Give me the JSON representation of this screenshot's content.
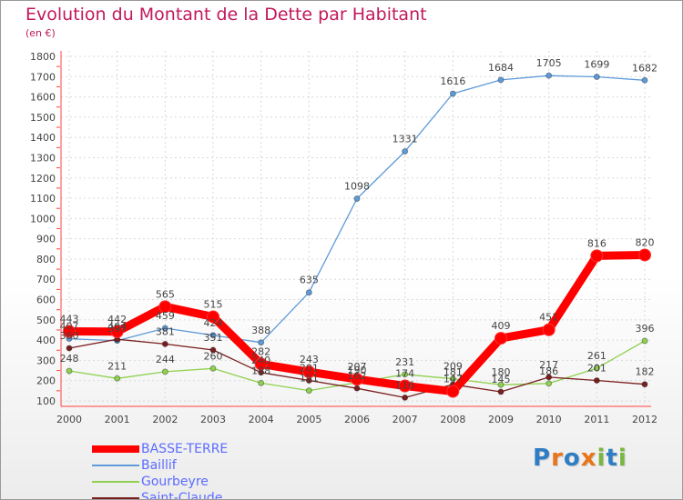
{
  "header": {
    "title": "Evolution du Montant de la Dette par Habitant",
    "subtitle": "(en €)"
  },
  "brand": {
    "logo_text": "Proxiti",
    "letters": [
      {
        "char": "P",
        "color": "#2f7ec4"
      },
      {
        "char": "r",
        "color": "#e8751a"
      },
      {
        "char": "o",
        "color": "#2f7ec4"
      },
      {
        "char": "x",
        "color": "#e8751a"
      },
      {
        "char": "i",
        "color": "#7ab642"
      },
      {
        "char": "t",
        "color": "#2f7ec4"
      },
      {
        "char": "i",
        "color": "#7ab642"
      }
    ]
  },
  "chart_data": {
    "type": "line",
    "title": "Evolution du Montant de la Dette par Habitant",
    "subtitle": "(en €)",
    "x": [
      "2000",
      "2001",
      "2002",
      "2003",
      "2004",
      "2005",
      "2006",
      "2007",
      "2008",
      "2009",
      "2010",
      "2011",
      "2012"
    ],
    "ylim": [
      100,
      1800
    ],
    "yticks": [
      100,
      200,
      300,
      400,
      500,
      600,
      700,
      800,
      900,
      1000,
      1100,
      1200,
      1300,
      1400,
      1500,
      1600,
      1700,
      1800
    ],
    "grid": true,
    "legend_position": "bottom-left",
    "series": [
      {
        "name": "BASSE-TERRE",
        "color": "#ff0000",
        "emphasis": true,
        "values": [
          443,
          442,
          565,
          515,
          282,
          243,
          207,
          174,
          147,
          409,
          451,
          816,
          820
        ],
        "labels": [
          "443",
          "442",
          "565",
          "515",
          "282",
          "243",
          "207",
          "174",
          "147",
          "409",
          "451",
          "816",
          "820"
        ]
      },
      {
        "name": "Baillif",
        "color": "#5e9bd8",
        "values": [
          407,
          397,
          459,
          424,
          388,
          635,
          1098,
          1331,
          1616,
          1684,
          1705,
          1699,
          1682
        ],
        "labels": [
          "407",
          "397",
          "459",
          "424",
          "388",
          "635",
          "1098",
          "1331",
          "1616",
          "1684",
          "1705",
          "1699",
          "1682"
        ]
      },
      {
        "name": "Gourbeyre",
        "color": "#8fd14f",
        "values": [
          248,
          211,
          244,
          260,
          188,
          151,
          190,
          231,
          209,
          180,
          186,
          261,
          396
        ],
        "labels": [
          "248",
          "211",
          "244",
          "260",
          "188",
          "151",
          "190",
          "231",
          "209",
          "180",
          "186",
          "261",
          "396"
        ]
      },
      {
        "name": "Saint-Claude",
        "color": "#7a1f1f",
        "values": [
          360,
          404,
          381,
          351,
          240,
          201,
          162,
          116,
          181,
          145,
          217,
          201,
          182
        ],
        "labels": [
          "360",
          "404",
          "381",
          "351",
          "240",
          "201",
          "162",
          "116",
          "181",
          "145",
          "217",
          "201",
          "182"
        ]
      }
    ]
  }
}
